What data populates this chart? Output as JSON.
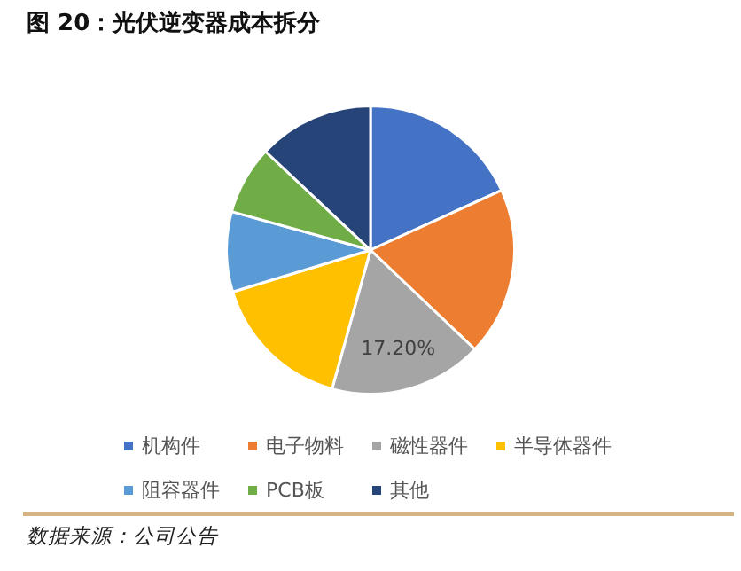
{
  "chart_data": {
    "type": "pie",
    "title": "图 20：光伏逆变器成本拆分",
    "categories": [
      "机构件",
      "电子物料",
      "磁性器件",
      "半导体器件",
      "阻容器件",
      "PCB板",
      "其他"
    ],
    "values": [
      18.2,
      18.9,
      17.2,
      16.0,
      9.0,
      7.7,
      13.0
    ],
    "colors": [
      "#4472c4",
      "#ed7d31",
      "#a5a5a5",
      "#ffc000",
      "#5b9bd5",
      "#70ad47",
      "#264478"
    ],
    "value_labels": [
      null,
      null,
      "17.20%",
      null,
      null,
      null,
      null
    ],
    "legend": "bottom",
    "annotations": [
      "数据来源：公司公告"
    ]
  }
}
